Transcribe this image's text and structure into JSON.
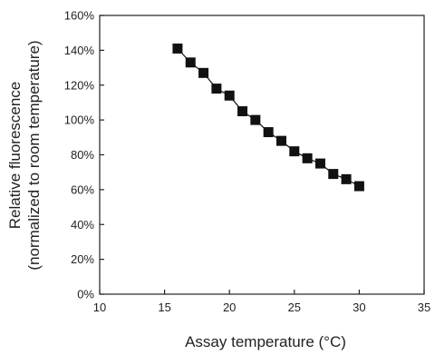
{
  "chart_data": {
    "type": "line",
    "title": "",
    "xlabel": "Assay temperature (°C)",
    "ylabel_line1": "Relative fluorescence",
    "ylabel_line2": "(normalized to room temperature)",
    "xlim": [
      10,
      35
    ],
    "ylim": [
      0,
      160
    ],
    "x_ticks": [
      "10",
      "15",
      "20",
      "25",
      "30",
      "35"
    ],
    "y_ticks": [
      "0%",
      "20%",
      "40%",
      "60%",
      "80%",
      "100%",
      "120%",
      "140%",
      "160%"
    ],
    "grid": false,
    "marker": "square",
    "series": [
      {
        "x": [
          16,
          17,
          18,
          19,
          20,
          21,
          22,
          23,
          24,
          25,
          26,
          27,
          28,
          29,
          30
        ],
        "y": [
          141,
          133,
          127,
          118,
          114,
          105,
          100,
          93,
          88,
          82,
          78,
          75,
          69,
          66,
          62
        ]
      }
    ],
    "colors": {
      "marker": "#111111",
      "line": "#111111",
      "axis": "#222222"
    }
  }
}
